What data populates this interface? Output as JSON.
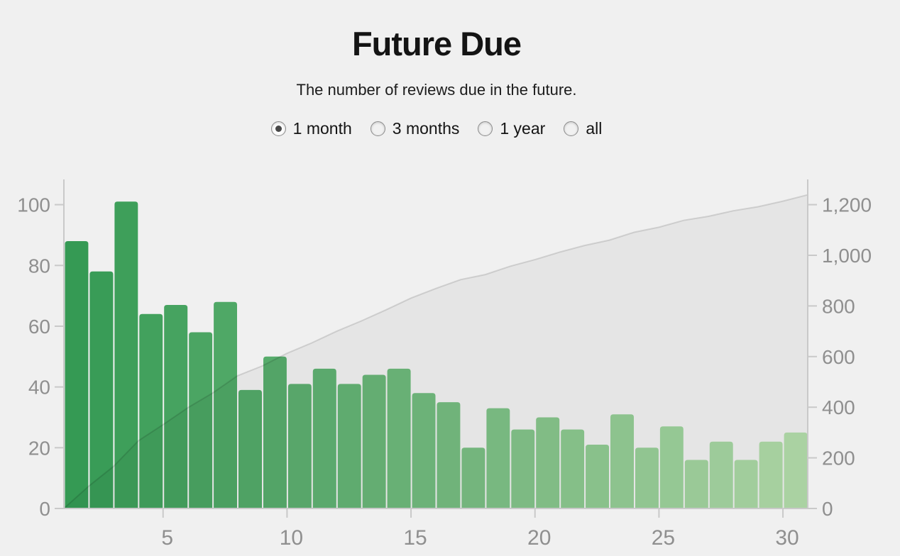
{
  "page": {
    "background": "#f0f0f0"
  },
  "header": {
    "title": "Future Due",
    "subtitle": "The number of reviews due in the future."
  },
  "period_selector": {
    "options": [
      {
        "label": "1 month",
        "selected": true
      },
      {
        "label": "3 months",
        "selected": false
      },
      {
        "label": "1 year",
        "selected": false
      },
      {
        "label": "all",
        "selected": false
      }
    ]
  },
  "chart_data": {
    "type": "bar",
    "title": "Future Due",
    "xlabel": "",
    "ylabel_left": "",
    "ylabel_right": "",
    "x_days": [
      1,
      2,
      3,
      4,
      5,
      6,
      7,
      8,
      9,
      10,
      11,
      12,
      13,
      14,
      15,
      16,
      17,
      18,
      19,
      20,
      21,
      22,
      23,
      24,
      25,
      26,
      27,
      28,
      29,
      30
    ],
    "series": [
      {
        "name": "reviews-due-per-day",
        "type": "bar",
        "axis": "left",
        "values": [
          88,
          78,
          101,
          64,
          67,
          58,
          68,
          39,
          50,
          41,
          46,
          41,
          44,
          46,
          38,
          35,
          20,
          33,
          26,
          30,
          26,
          21,
          31,
          20,
          27,
          16,
          22,
          16,
          22,
          25
        ]
      },
      {
        "name": "cumulative-reviews-due",
        "type": "area",
        "axis": "right",
        "values": [
          88,
          166,
          267,
          331,
          398,
          456,
          524,
          563,
          613,
          654,
          700,
          741,
          785,
          831,
          869,
          904,
          924,
          957,
          983,
          1013,
          1039,
          1060,
          1091,
          1111,
          1138,
          1154,
          1176,
          1192,
          1214,
          1239
        ]
      }
    ],
    "xtick_labels": [
      "5",
      "10",
      "15",
      "20",
      "25",
      "30"
    ],
    "xtick_days": [
      5,
      10,
      15,
      20,
      25,
      30
    ],
    "left_axis": {
      "tick_labels": [
        "0",
        "20",
        "40",
        "60",
        "80",
        "100"
      ],
      "tick_values": [
        0,
        20,
        40,
        60,
        80,
        100
      ],
      "range": [
        0,
        108
      ]
    },
    "right_axis": {
      "tick_labels": [
        "0",
        "200",
        "400",
        "600",
        "800",
        "1,000",
        "1,200"
      ],
      "tick_values": [
        0,
        200,
        400,
        600,
        800,
        1000,
        1200
      ],
      "range": [
        0,
        1300
      ]
    },
    "grid": false,
    "legend": "none",
    "colors": {
      "bar_gradient_start": "#359a54",
      "bar_gradient_end": "#b2dcaa",
      "cumulative_fill": "rgba(0,0,0,0.045)",
      "cumulative_line": "rgba(0,0,0,0.125)",
      "axis_line": "#c9c9c9",
      "axis_label": "#8f8f8f"
    }
  }
}
